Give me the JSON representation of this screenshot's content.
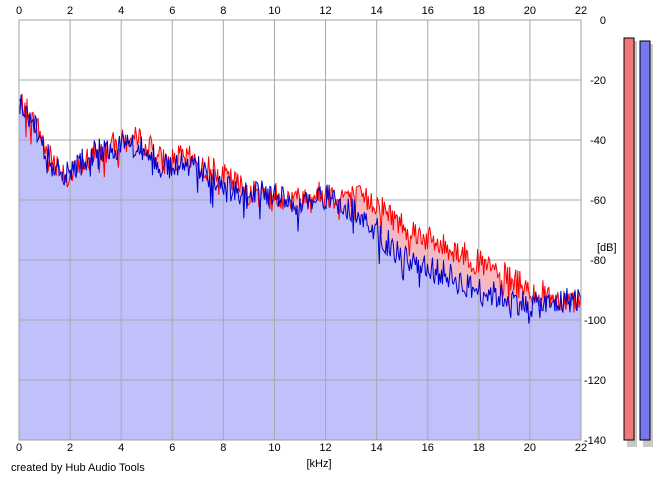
{
  "credit": "created by Hub Audio Tools",
  "chart_data": {
    "type": "area",
    "xlabel": "[kHz]",
    "ylabel": "[dB]",
    "xlim": [
      0,
      22
    ],
    "ylim": [
      -140,
      0
    ],
    "x_ticks": [
      0,
      2,
      4,
      6,
      8,
      10,
      12,
      14,
      16,
      18,
      20,
      22
    ],
    "y_ticks": [
      0,
      -20,
      -40,
      -60,
      -80,
      -100,
      -120,
      -140
    ],
    "grid": true,
    "series": [
      {
        "color": "#ff0000",
        "fill": "#f5b8c0",
        "x": [
          0,
          0.25,
          0.5,
          0.8,
          1.0,
          1.3,
          1.6,
          2.0,
          2.3,
          2.6,
          3.0,
          3.3,
          3.6,
          4.0,
          4.3,
          4.6,
          5.0,
          5.3,
          5.6,
          6.0,
          6.3,
          6.6,
          7.0,
          7.3,
          7.6,
          8.0,
          8.4,
          8.8,
          9.2,
          9.6,
          10.0,
          10.4,
          10.8,
          11.2,
          11.6,
          12.0,
          12.4,
          12.8,
          13.2,
          13.6,
          14.0,
          14.4,
          14.8,
          15.2,
          15.6,
          16.0,
          16.4,
          16.8,
          17.2,
          17.6,
          18.0,
          18.4,
          18.8,
          19.2,
          19.6,
          20.0,
          20.4,
          20.8,
          21.2,
          21.6,
          22.0
        ],
        "values": [
          -27,
          -29,
          -33,
          -37,
          -42,
          -46,
          -49,
          -52,
          -50,
          -47,
          -45,
          -44,
          -42,
          -41,
          -40,
          -40,
          -41,
          -44,
          -47,
          -47,
          -46,
          -46,
          -48,
          -50,
          -49,
          -52,
          -54,
          -56,
          -58,
          -58,
          -58,
          -59,
          -60,
          -59,
          -58,
          -58,
          -59,
          -58,
          -59,
          -60,
          -61,
          -64,
          -67,
          -69,
          -71,
          -73,
          -75,
          -76,
          -77,
          -79,
          -81,
          -83,
          -84,
          -86,
          -88,
          -90,
          -91,
          -92,
          -93,
          -93,
          -93
        ]
      },
      {
        "color": "#0000cc",
        "fill": "#c0c0fa",
        "x": [
          0,
          0.25,
          0.5,
          0.8,
          1.0,
          1.3,
          1.6,
          2.0,
          2.3,
          2.6,
          3.0,
          3.3,
          3.6,
          4.0,
          4.3,
          4.6,
          5.0,
          5.3,
          5.6,
          6.0,
          6.3,
          6.6,
          7.0,
          7.3,
          7.6,
          8.0,
          8.4,
          8.8,
          9.2,
          9.6,
          10.0,
          10.4,
          10.8,
          11.2,
          11.6,
          12.0,
          12.4,
          12.8,
          13.2,
          13.6,
          14.0,
          14.4,
          14.8,
          15.2,
          15.6,
          16.0,
          16.4,
          16.8,
          17.2,
          17.6,
          18.0,
          18.4,
          18.8,
          19.2,
          19.6,
          20.0,
          20.4,
          20.8,
          21.2,
          21.6,
          22.0
        ],
        "values": [
          -28,
          -30,
          -34,
          -39,
          -44,
          -48,
          -50,
          -52,
          -49,
          -46,
          -44,
          -44,
          -42,
          -42,
          -41,
          -42,
          -43,
          -46,
          -49,
          -49,
          -47,
          -47,
          -49,
          -52,
          -52,
          -56,
          -57,
          -58,
          -58,
          -58,
          -58,
          -60,
          -61,
          -60,
          -59,
          -59,
          -60,
          -62,
          -64,
          -66,
          -70,
          -74,
          -77,
          -79,
          -81,
          -82,
          -84,
          -85,
          -87,
          -89,
          -90,
          -91,
          -92,
          -93,
          -94,
          -95,
          -95,
          -95,
          -94,
          -93,
          -93
        ]
      }
    ],
    "level_meters": [
      {
        "color": "#f07878",
        "value": -6
      },
      {
        "color": "#7878ee",
        "value": -7
      }
    ]
  }
}
